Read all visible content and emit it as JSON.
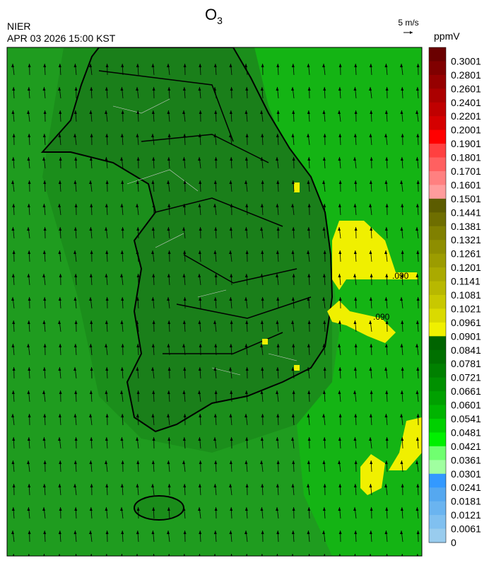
{
  "header": {
    "title": {
      "text": "O",
      "subscript": "3"
    },
    "agency": "NIER",
    "datetime": "APR 03 2026 15:00 KST",
    "wind_reference": "5 m/s"
  },
  "colorbar": {
    "unit": "ppmV",
    "levels": [
      0.3001,
      0.2801,
      0.2601,
      0.2401,
      0.2201,
      0.2001,
      0.1901,
      0.1801,
      0.1701,
      0.1601,
      0.1501,
      0.1441,
      0.1381,
      0.1321,
      0.1261,
      0.1201,
      0.1141,
      0.1081,
      0.1021,
      0.0961,
      0.0901,
      0.0841,
      0.0781,
      0.0721,
      0.0661,
      0.0601,
      0.0541,
      0.0481,
      0.0421,
      0.0361,
      0.0301,
      0.0241,
      0.0181,
      0.0121,
      0.0061,
      0
    ],
    "colors": [
      "#6a0000",
      "#800000",
      "#960000",
      "#ab0000",
      "#c00000",
      "#d50000",
      "#ff0000",
      "#ff4040",
      "#ff6060",
      "#ff8080",
      "#ff9c9c",
      "#5c5c00",
      "#6e6e00",
      "#808000",
      "#8e8e00",
      "#9c9c00",
      "#aaaa00",
      "#b8b800",
      "#c8c800",
      "#dada00",
      "#f0f000",
      "#006400",
      "#007000",
      "#008000",
      "#009000",
      "#00a000",
      "#00b400",
      "#00d000",
      "#00f000",
      "#70ff70",
      "#a0ffa0",
      "#3399ff",
      "#55a8f0",
      "#6ab4f0",
      "#80c0f0",
      "#99ccee"
    ]
  },
  "map": {
    "contour_labels": [
      ".090",
      ".090"
    ]
  }
}
